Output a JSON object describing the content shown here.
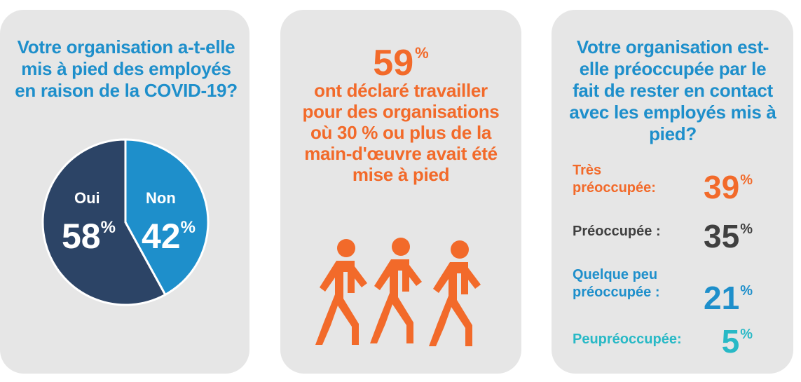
{
  "panel1": {
    "question": "Votre organisation a-t-elle mis à pied des employés en raison de la COVID-19?",
    "labels": {
      "oui": "Oui",
      "non": "Non"
    },
    "pct_oui": "58",
    "pct_non": "42",
    "pct_symbol": "%"
  },
  "panel2": {
    "big_value": "59",
    "pct_symbol": "%",
    "description": "ont déclaré travailler pour des organisations où 30 % ou plus de la main-d'œuvre avait été mise à pied",
    "icon": "walking-person-icon"
  },
  "panel3": {
    "question": "Votre organisation est-elle préoccupée par le fait de rester en contact avec les employés mis à pied?",
    "pct_symbol": "%",
    "rows": [
      {
        "label": "Très préoccupée:",
        "value": "39"
      },
      {
        "label": "Préoccupée :",
        "value": "35"
      },
      {
        "label": "Quelque peu préoccupée :",
        "value": "21"
      },
      {
        "label": "Peupréoccupée:",
        "value": "5"
      }
    ]
  },
  "colors": {
    "oui": "#2c4466",
    "non": "#1e8fcb",
    "orange": "#f26a2a",
    "dark": "#404040",
    "blue": "#1e8fcb",
    "teal": "#28b9c6"
  },
  "chart_data": {
    "type": "pie",
    "categories": [
      "Oui",
      "Non"
    ],
    "values": [
      58,
      42
    ]
  }
}
